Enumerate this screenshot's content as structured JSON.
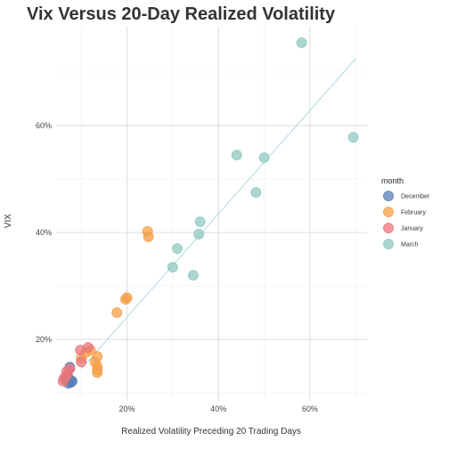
{
  "chart_data": {
    "type": "scatter",
    "title": "Vix Versus 20-Day Realized Volatility",
    "xlabel": "Realized Volatility Preceding 20 Trading Days",
    "ylabel": "VIX",
    "xlim": [
      0.045,
      0.725
    ],
    "ylim": [
      0.085,
      0.785
    ],
    "x_ticks": [
      0.2,
      0.4,
      0.6
    ],
    "x_tick_labels": [
      "20%",
      "40%",
      "60%"
    ],
    "y_ticks": [
      0.2,
      0.4,
      0.6
    ],
    "y_tick_labels": [
      "20%",
      "40%",
      "60%"
    ],
    "grid": true,
    "legend": {
      "title": "month",
      "position": "right",
      "entries": [
        {
          "label": "December",
          "color": "#5b7fb5"
        },
        {
          "label": "February",
          "color": "#f4a04a"
        },
        {
          "label": "January",
          "color": "#e8767a"
        },
        {
          "label": "March",
          "color": "#8fc9c0"
        }
      ]
    },
    "trend_line": {
      "x": [
        0.1,
        0.7
      ],
      "y": [
        0.145,
        0.725
      ],
      "color": "#9ccfd8"
    },
    "series": [
      {
        "name": "December",
        "color": "#5b7fb5",
        "points": [
          [
            0.075,
            0.148
          ],
          [
            0.075,
            0.125
          ],
          [
            0.078,
            0.12
          ],
          [
            0.07,
            0.13
          ],
          [
            0.08,
            0.122
          ],
          [
            0.065,
            0.125
          ],
          [
            0.072,
            0.118
          ]
        ]
      },
      {
        "name": "February",
        "color": "#f4a04a",
        "points": [
          [
            0.245,
            0.402
          ],
          [
            0.247,
            0.392
          ],
          [
            0.2,
            0.278
          ],
          [
            0.197,
            0.275
          ],
          [
            0.178,
            0.25
          ],
          [
            0.135,
            0.168
          ],
          [
            0.13,
            0.158
          ],
          [
            0.135,
            0.15
          ],
          [
            0.135,
            0.143
          ],
          [
            0.135,
            0.138
          ],
          [
            0.12,
            0.18
          ],
          [
            0.11,
            0.175
          ],
          [
            0.1,
            0.165
          ]
        ]
      },
      {
        "name": "January",
        "color": "#e8767a",
        "points": [
          [
            0.098,
            0.18
          ],
          [
            0.115,
            0.185
          ],
          [
            0.1,
            0.158
          ],
          [
            0.075,
            0.145
          ],
          [
            0.07,
            0.135
          ],
          [
            0.063,
            0.128
          ],
          [
            0.06,
            0.122
          ],
          [
            0.068,
            0.14
          ]
        ]
      },
      {
        "name": "March",
        "color": "#8fc9c0",
        "points": [
          [
            0.582,
            0.755
          ],
          [
            0.695,
            0.578
          ],
          [
            0.44,
            0.545
          ],
          [
            0.5,
            0.54
          ],
          [
            0.482,
            0.475
          ],
          [
            0.36,
            0.42
          ],
          [
            0.357,
            0.397
          ],
          [
            0.31,
            0.37
          ],
          [
            0.3,
            0.335
          ],
          [
            0.345,
            0.32
          ]
        ]
      }
    ]
  }
}
